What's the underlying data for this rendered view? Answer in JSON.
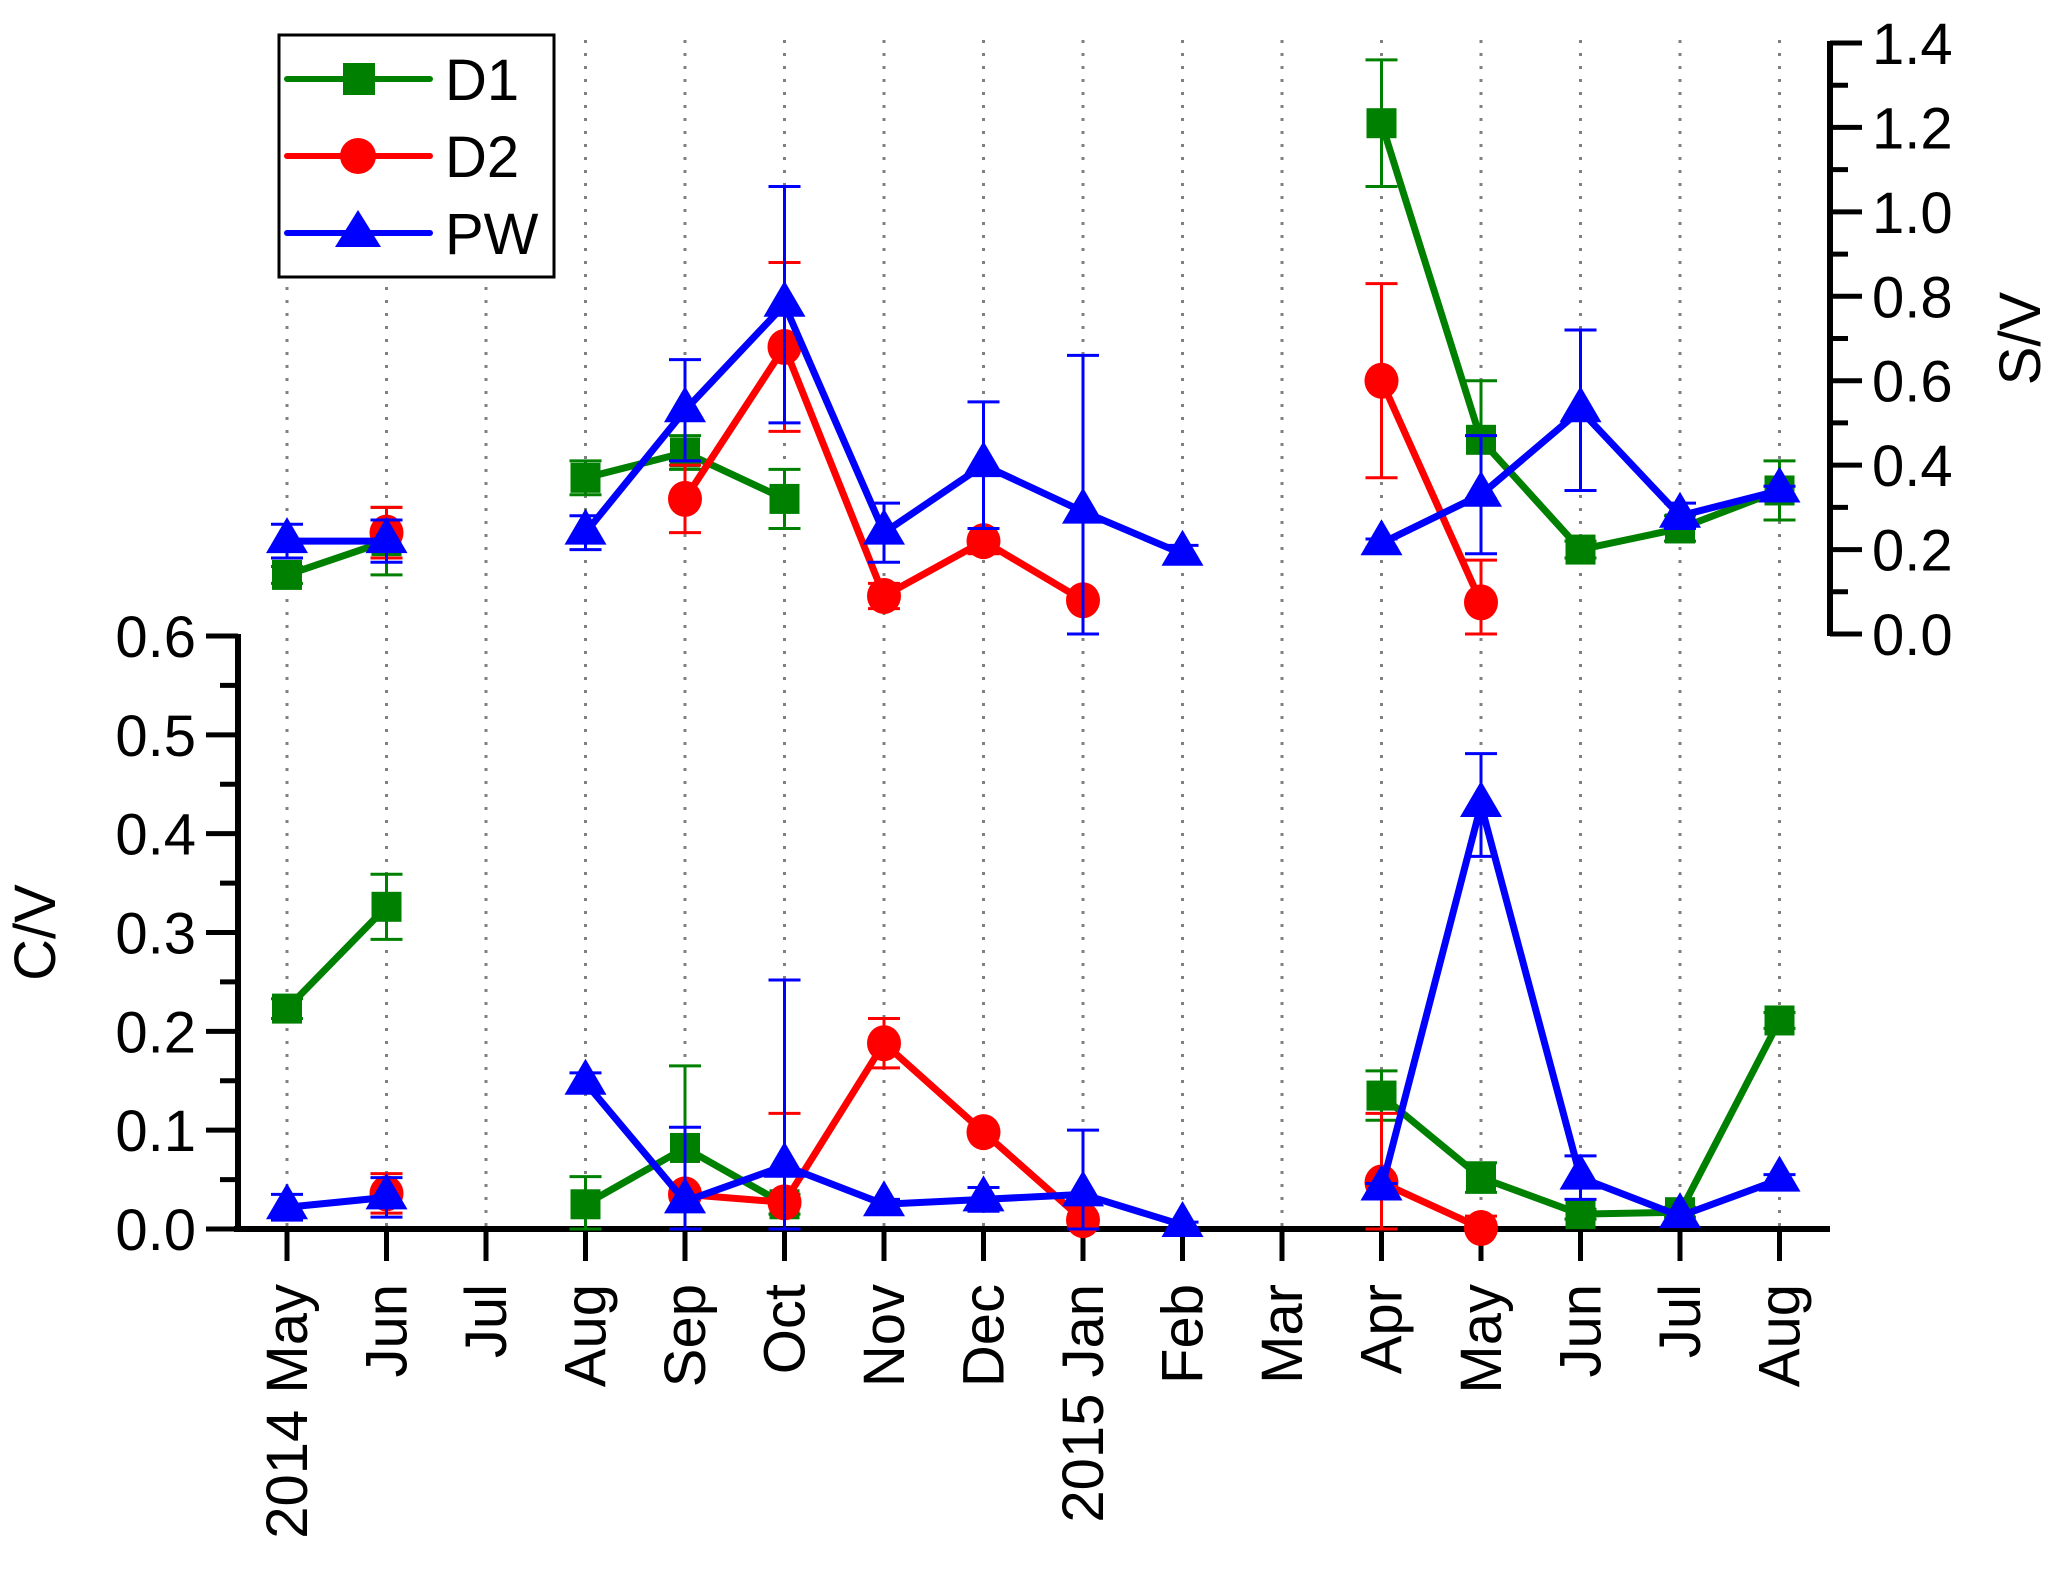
{
  "chart_data": {
    "type": "line",
    "title": "",
    "x": [
      "2014 May",
      "Jun",
      "Jul",
      "Aug",
      "Sep",
      "Oct",
      "Nov",
      "Dec",
      "2015 Jan",
      "Feb",
      "Mar",
      "Apr",
      "May",
      "Jun",
      "Jul",
      "Aug"
    ],
    "xlabel": "",
    "grid": "vertical dotted lines at each month",
    "legend": {
      "placement": "top-left",
      "entries": [
        {
          "name": "D1",
          "color": "#008000",
          "marker": "square"
        },
        {
          "name": "D2",
          "color": "#ff0000",
          "marker": "circle"
        },
        {
          "name": "PW",
          "color": "#0000ff",
          "marker": "triangle"
        }
      ]
    },
    "panels": [
      {
        "id": "upper",
        "ylabel": "S/V",
        "axis_side": "right",
        "ylim": [
          0.0,
          1.4
        ],
        "yticks": [
          "0.0",
          "0.2",
          "0.4",
          "0.6",
          "0.8",
          "1.0",
          "1.2",
          "1.4"
        ],
        "ytick_values": [
          0.0,
          0.2,
          0.4,
          0.6,
          0.8,
          1.0,
          1.2,
          1.4
        ],
        "series": [
          {
            "name": "D1",
            "color": "#008000",
            "marker": "square",
            "values": [
              0.14,
              0.22,
              null,
              0.37,
              0.43,
              0.32,
              null,
              null,
              null,
              null,
              null,
              1.21,
              0.46,
              0.2,
              0.25,
              0.34
            ],
            "errors": [
              0.02,
              0.08,
              null,
              0.04,
              0.04,
              0.07,
              null,
              null,
              null,
              null,
              null,
              0.15,
              0.14,
              0.02,
              0.03,
              0.07
            ]
          },
          {
            "name": "D2",
            "color": "#ff0000",
            "marker": "circle",
            "values": [
              null,
              0.24,
              null,
              null,
              0.32,
              0.68,
              0.09,
              0.22,
              0.08,
              null,
              null,
              0.6,
              0.075,
              null,
              null,
              null
            ],
            "errors": [
              null,
              0.06,
              null,
              null,
              0.08,
              0.2,
              0.03,
              0.03,
              0.0,
              null,
              null,
              0.23,
              0.1,
              null,
              null,
              null
            ]
          },
          {
            "name": "PW",
            "color": "#0000ff",
            "marker": "triangle",
            "values": [
              0.22,
              0.22,
              null,
              0.24,
              0.53,
              0.78,
              0.24,
              0.4,
              0.29,
              0.19,
              null,
              0.215,
              0.33,
              0.53,
              0.28,
              0.34
            ],
            "errors": [
              0.04,
              0.05,
              null,
              0.04,
              0.12,
              0.28,
              0.07,
              0.15,
              0.37,
              0.02,
              null,
              0.01,
              0.14,
              0.19,
              0.03,
              0.01
            ]
          }
        ]
      },
      {
        "id": "lower",
        "ylabel": "C/V",
        "axis_side": "left",
        "ylim": [
          0.0,
          0.6
        ],
        "yticks": [
          "0.0",
          "0.1",
          "0.2",
          "0.3",
          "0.4",
          "0.5",
          "0.6"
        ],
        "ytick_values": [
          0.0,
          0.1,
          0.2,
          0.3,
          0.4,
          0.5,
          0.6
        ],
        "series": [
          {
            "name": "D1",
            "color": "#008000",
            "marker": "square",
            "values": [
              0.223,
              0.326,
              null,
              0.025,
              0.082,
              0.025,
              null,
              null,
              null,
              null,
              null,
              0.135,
              0.052,
              0.015,
              0.017,
              0.211
            ],
            "errors": [
              0.01,
              0.033,
              null,
              0.028,
              0.083,
              0.01,
              null,
              null,
              null,
              null,
              null,
              0.025,
              0.015,
              0.005,
              0.005,
              0.008
            ]
          },
          {
            "name": "D2",
            "color": "#ff0000",
            "marker": "circle",
            "values": [
              null,
              0.036,
              null,
              null,
              0.035,
              0.027,
              0.188,
              0.098,
              0.009,
              null,
              null,
              0.047,
              0.001,
              null,
              null,
              null
            ],
            "errors": [
              null,
              0.02,
              null,
              null,
              0.005,
              0.09,
              0.025,
              0.005,
              0.005,
              null,
              null,
              0.07,
              0.012,
              null,
              null,
              null
            ]
          },
          {
            "name": "PW",
            "color": "#0000ff",
            "marker": "triangle",
            "values": [
              0.022,
              0.032,
              null,
              0.148,
              0.028,
              0.064,
              0.025,
              0.03,
              0.035,
              0.004,
              null,
              0.041,
              0.429,
              0.052,
              0.013,
              0.05
            ],
            "errors": [
              0.013,
              0.02,
              null,
              0.01,
              0.075,
              0.188,
              0.005,
              0.012,
              0.065,
              0.003,
              null,
              0.005,
              0.052,
              0.022,
              0.005,
              0.005
            ]
          }
        ]
      }
    ]
  }
}
